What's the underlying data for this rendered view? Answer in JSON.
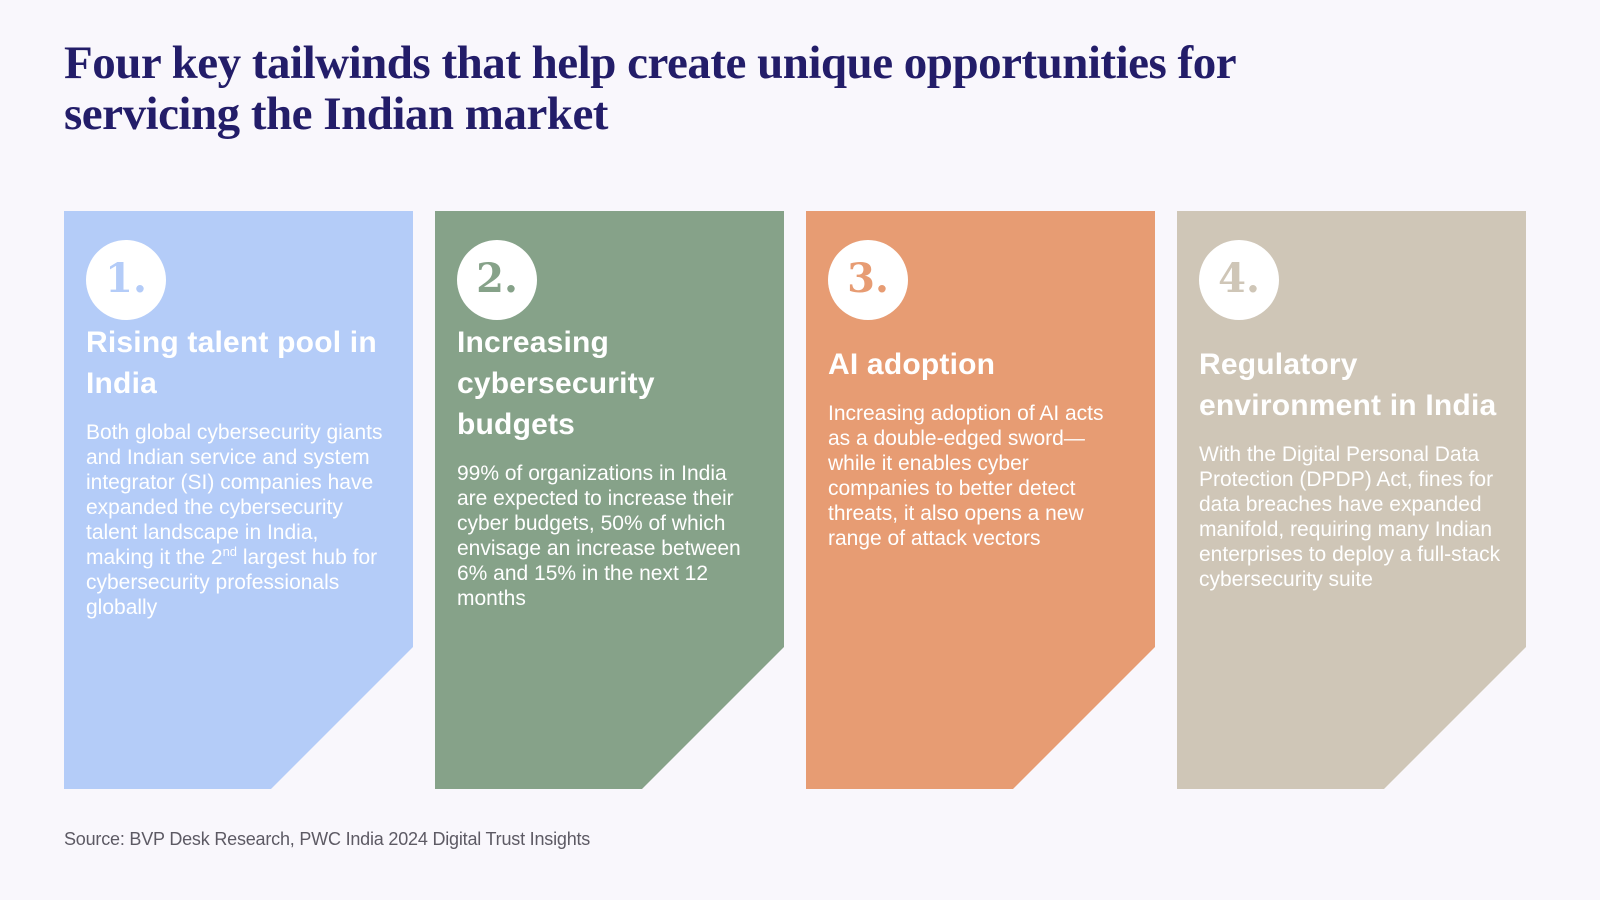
{
  "title": "Four key tailwinds that help create unique opportunities for servicing the Indian market",
  "source": "Source: BVP Desk Research, PWC India 2024 Digital Trust Insights",
  "colors": {
    "background": "#f9f7fc",
    "title": "#231d69",
    "card_text": "#ffffff",
    "source_text": "#5d5a64"
  },
  "cards": [
    {
      "number": "1.",
      "color": "#b4ccf8",
      "heading": "Rising talent pool in India",
      "body_before_sup": "Both global cybersecurity giants and Indian service and system integrator (SI) companies have expanded the cybersecurity talent landscape in India, making it the 2",
      "sup": "nd",
      "body_after_sup": " largest hub for cybersecurity professionals globally"
    },
    {
      "number": "2.",
      "color": "#86a289",
      "heading": "Increasing cybersecurity budgets",
      "body": "99% of organizations in India are expected to increase their cyber budgets, 50% of which envisage an increase between 6% and 15% in the next 12 months"
    },
    {
      "number": "3.",
      "color": "#e79c73",
      "heading": "AI adoption",
      "body": "Increasing adoption of AI acts as a double-edged sword—while it enables cyber companies to better detect threats, it also opens a new range of attack vectors"
    },
    {
      "number": "4.",
      "color": "#cfc6b7",
      "heading": "Regulatory environment in India",
      "body": "With the Digital Personal Data Protection (DPDP) Act, fines for data breaches have expanded manifold, requiring many Indian enterprises to deploy a full-stack cybersecurity suite"
    }
  ]
}
